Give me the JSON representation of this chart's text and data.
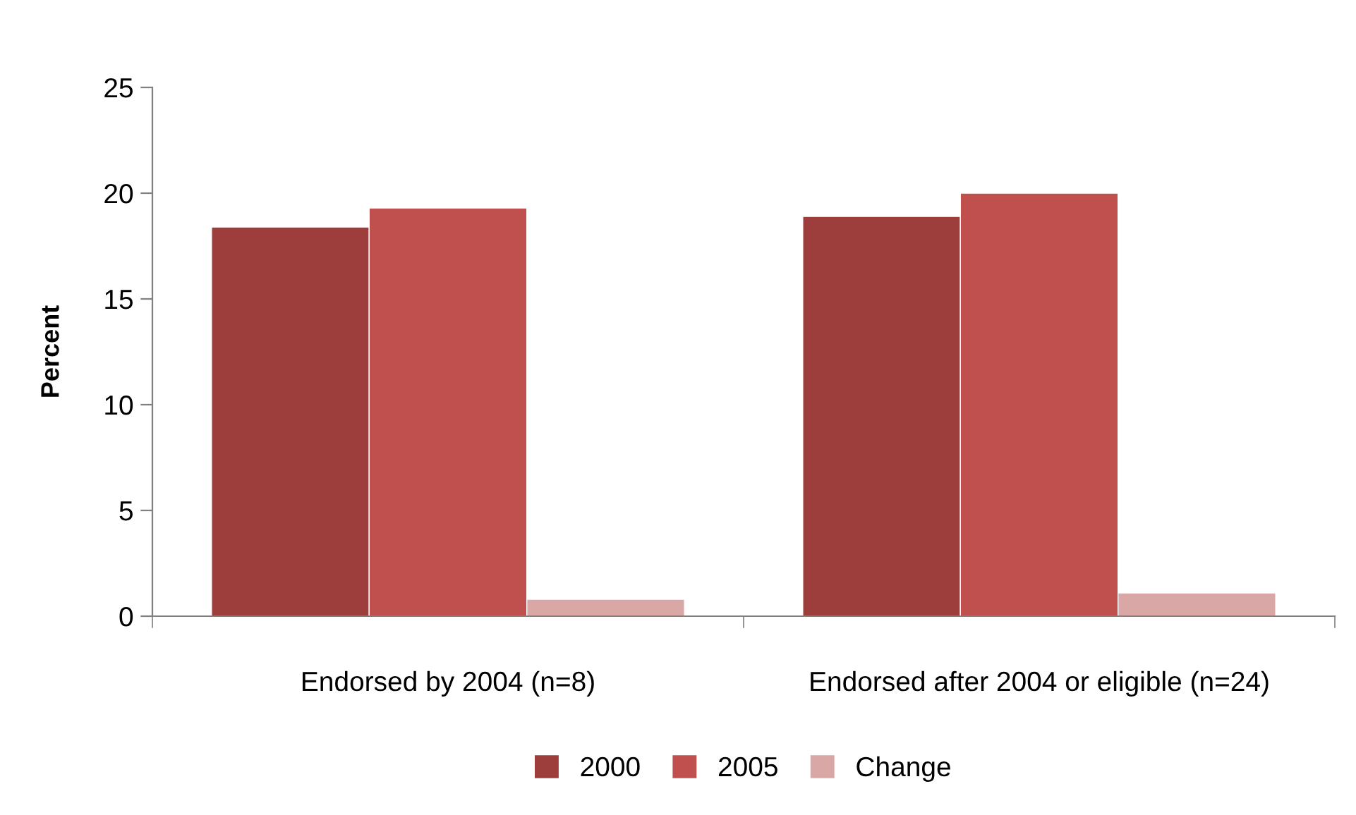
{
  "chart_data": {
    "type": "bar",
    "ylabel": "Percent",
    "categories": [
      "Endorsed by 2004 (n=8)",
      "Endorsed after 2004 or eligible (n=24)"
    ],
    "series": [
      {
        "name": "2000",
        "color": "#9e3e3c",
        "values": [
          18.4,
          18.9
        ]
      },
      {
        "name": "2005",
        "color": "#c0504d",
        "values": [
          19.3,
          20.0
        ]
      },
      {
        "name": "Change",
        "color": "#d9a7a6",
        "values": [
          0.8,
          1.1
        ]
      }
    ],
    "ylim": [
      0,
      25
    ],
    "yticks": [
      0,
      5,
      10,
      15,
      20,
      25
    ],
    "grid": false,
    "legend": "bottom"
  }
}
